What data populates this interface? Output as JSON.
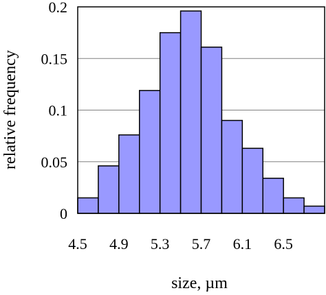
{
  "chart_data": {
    "type": "bar",
    "title": "",
    "xlabel": "size, µm",
    "ylabel": "relative frequency",
    "bin_width": 0.2,
    "bin_starts": [
      4.5,
      4.7,
      4.9,
      5.1,
      5.3,
      5.5,
      5.7,
      5.9,
      6.1,
      6.3,
      6.5,
      6.7
    ],
    "values": [
      0.015,
      0.046,
      0.076,
      0.119,
      0.175,
      0.196,
      0.161,
      0.09,
      0.063,
      0.034,
      0.015,
      0.007
    ],
    "xlim": [
      4.5,
      6.9
    ],
    "ylim": [
      0,
      0.2
    ],
    "x_ticks": [
      4.5,
      4.9,
      5.3,
      5.7,
      6.1,
      6.5
    ],
    "x_tick_labels": [
      "4.5",
      "4.9",
      "5.3",
      "5.7",
      "6.1",
      "6.5"
    ],
    "y_ticks": [
      0,
      0.05,
      0.1,
      0.15,
      0.2
    ],
    "y_tick_labels": [
      "0",
      "0.05",
      "0.1",
      "0.15",
      "0.2"
    ],
    "grid": "horizontal",
    "legend": "none",
    "colors": {
      "bar_fill": "#9999ff",
      "bar_stroke": "#000000",
      "grid": "#808080",
      "frame": "#000000"
    }
  }
}
